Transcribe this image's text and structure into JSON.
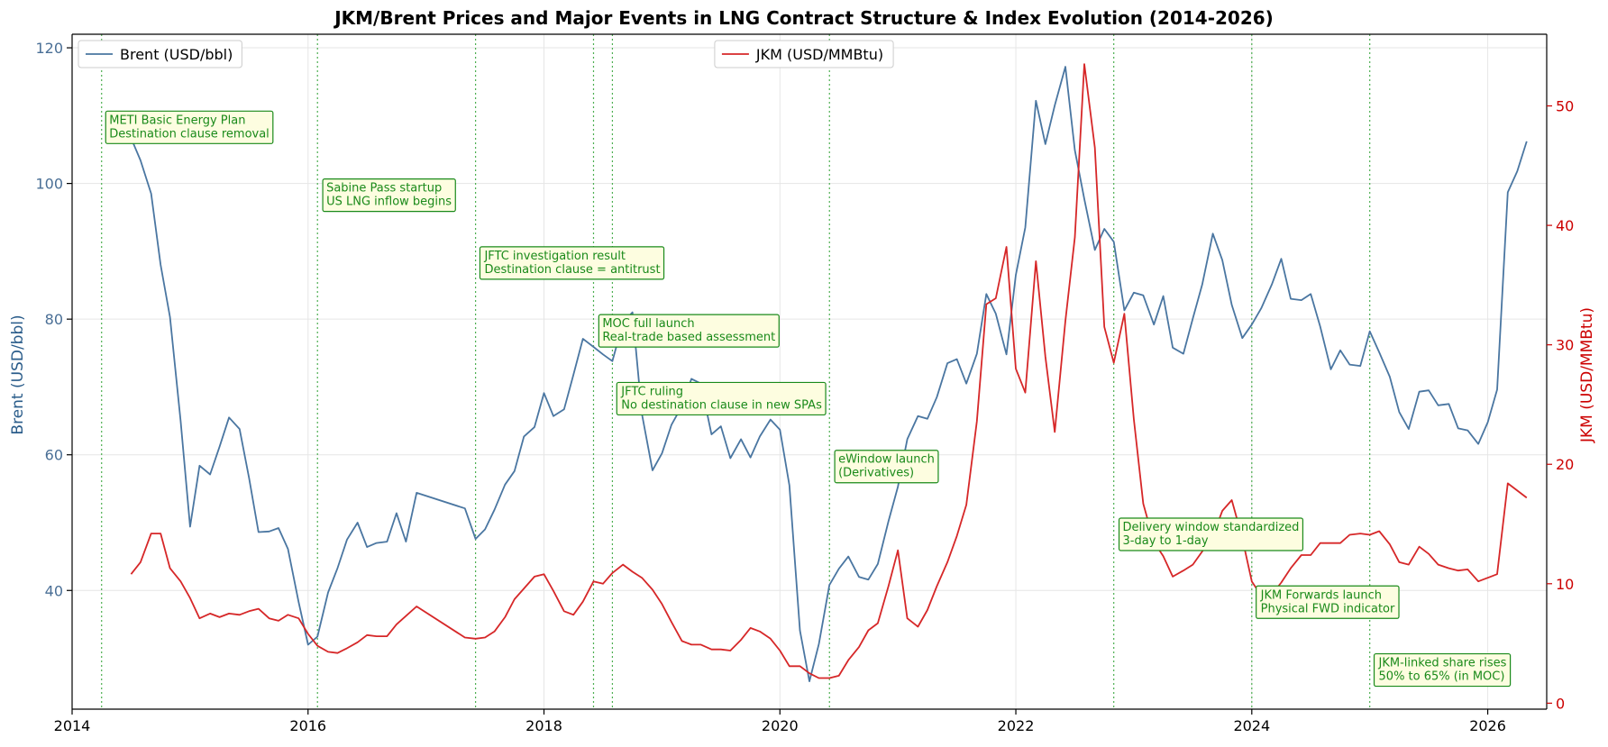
{
  "chart_data": {
    "type": "line",
    "title": "JKM/Brent Prices and Major Events in LNG Contract Structure & Index Evolution (2014-2026)",
    "xlabel": "",
    "xlim": [
      2014.0,
      2026.5
    ],
    "x_ticks": [
      2014,
      2016,
      2018,
      2020,
      2022,
      2024,
      2026
    ],
    "x_tick_labels": [
      "2014",
      "2016",
      "2018",
      "2020",
      "2022",
      "2024",
      "2026"
    ],
    "grid": true,
    "y_left": {
      "label": "Brent (USD/bbl)",
      "lim": [
        22.5,
        122
      ],
      "ticks": [
        40,
        60,
        80,
        100,
        120
      ],
      "tick_labels": [
        "40",
        "60",
        "80",
        "100",
        "120"
      ],
      "color": "#4a6f96"
    },
    "y_right": {
      "label": "JKM (USD/MMBtu)",
      "lim": [
        -0.5,
        56
      ],
      "ticks": [
        0,
        10,
        20,
        30,
        40,
        50
      ],
      "tick_labels": [
        "0",
        "10",
        "20",
        "30",
        "40",
        "50"
      ],
      "color": "#cc0000"
    },
    "series": [
      {
        "name": "Brent (USD/bbl)",
        "axis": "left",
        "color": "#4a76a1",
        "x": [
          2014.5,
          2014.58,
          2014.67,
          2014.75,
          2014.83,
          2014.92,
          2015.0,
          2015.08,
          2015.17,
          2015.25,
          2015.33,
          2015.42,
          2015.5,
          2015.58,
          2015.67,
          2015.75,
          2015.83,
          2015.92,
          2016.0,
          2016.08,
          2016.17,
          2016.25,
          2016.33,
          2016.42,
          2016.5,
          2016.58,
          2016.67,
          2016.75,
          2016.83,
          2016.92,
          2017.33,
          2017.42,
          2017.5,
          2017.58,
          2017.67,
          2017.75,
          2017.83,
          2017.92,
          2018.0,
          2018.08,
          2018.17,
          2018.25,
          2018.33,
          2018.42,
          2018.5,
          2018.58,
          2018.67,
          2018.75,
          2018.83,
          2018.92,
          2019.0,
          2019.08,
          2019.17,
          2019.25,
          2019.33,
          2019.42,
          2019.5,
          2019.58,
          2019.67,
          2019.75,
          2019.83,
          2019.92,
          2020.0,
          2020.08,
          2020.17,
          2020.25,
          2020.33,
          2020.42,
          2020.5,
          2020.58,
          2020.67,
          2020.75,
          2020.83,
          2020.92,
          2021.0,
          2021.08,
          2021.17,
          2021.25,
          2021.33,
          2021.42,
          2021.5,
          2021.58,
          2021.67,
          2021.75,
          2021.83,
          2021.92,
          2022.0,
          2022.08,
          2022.17,
          2022.25,
          2022.33,
          2022.42,
          2022.5,
          2022.58,
          2022.67,
          2022.75,
          2022.83,
          2022.92,
          2023.0,
          2023.08,
          2023.17,
          2023.25,
          2023.33,
          2023.42,
          2023.5,
          2023.58,
          2023.67,
          2023.75,
          2023.83,
          2023.92,
          2024.0,
          2024.08,
          2024.17,
          2024.25,
          2024.33,
          2024.42,
          2024.5,
          2024.58,
          2024.67,
          2024.75,
          2024.83,
          2024.92,
          2025.0,
          2025.08,
          2025.17,
          2025.25,
          2025.33,
          2025.42,
          2025.5,
          2025.58,
          2025.67,
          2025.75,
          2025.83,
          2025.92,
          2026.0,
          2026.08,
          2026.17,
          2026.25,
          2026.33
        ],
        "values": [
          106.7,
          103.4,
          98.5,
          88,
          80.3,
          65,
          49.4,
          58.4,
          57.1,
          61.2,
          65.5,
          63.8,
          56.6,
          48.6,
          48.7,
          49.2,
          46.1,
          38.3,
          32,
          33.2,
          39.7,
          43.3,
          47.5,
          50,
          46.4,
          47,
          47.2,
          51.4,
          47.2,
          54.4,
          52.1,
          47.6,
          49,
          51.9,
          55.6,
          57.6,
          62.7,
          64.1,
          69.1,
          65.7,
          66.7,
          71.8,
          77.1,
          75.9,
          74.8,
          73.8,
          79.5,
          81,
          66,
          57.7,
          60.2,
          64.4,
          67.2,
          71.2,
          70.5,
          63,
          64.2,
          59.5,
          62.3,
          59.6,
          62.7,
          65.2,
          63.7,
          55.5,
          34.1,
          26.6,
          32.1,
          40.8,
          43.2,
          45,
          42,
          41.6,
          43.9,
          50.2,
          55.3,
          62.3,
          65.7,
          65.3,
          68.5,
          73.5,
          74.1,
          70.5,
          74.9,
          83.7,
          80.8,
          74.8,
          86.5,
          93.5,
          112.2,
          105.8,
          111.5,
          117.2,
          104.9,
          97.7,
          90.2,
          93.3,
          91.4,
          81.3,
          83.9,
          83.5,
          79.2,
          83.4,
          75.8,
          74.9,
          80.1,
          85.1,
          92.6,
          88.7,
          82.1,
          77.2,
          79.2,
          81.6,
          85.1,
          88.9,
          83,
          82.8,
          83.7,
          78.9,
          72.6,
          75.4,
          73.3,
          73.1,
          78.2,
          75.1,
          71.5,
          66.3,
          63.8,
          69.3,
          69.5,
          67.3,
          67.5,
          63.9,
          63.6,
          61.6,
          64.8,
          69.6,
          98.7,
          101.8,
          106.2
        ]
      },
      {
        "name": "JKM (USD/MMBtu)",
        "axis": "right",
        "color": "#d62728",
        "x": [
          2014.5,
          2014.58,
          2014.67,
          2014.75,
          2014.83,
          2014.92,
          2015.0,
          2015.08,
          2015.17,
          2015.25,
          2015.33,
          2015.42,
          2015.5,
          2015.58,
          2015.67,
          2015.75,
          2015.83,
          2015.92,
          2016.0,
          2016.08,
          2016.17,
          2016.25,
          2016.33,
          2016.42,
          2016.5,
          2016.58,
          2016.67,
          2016.75,
          2016.83,
          2016.92,
          2017.33,
          2017.42,
          2017.5,
          2017.58,
          2017.67,
          2017.75,
          2017.83,
          2017.92,
          2018.0,
          2018.08,
          2018.17,
          2018.25,
          2018.33,
          2018.42,
          2018.5,
          2018.58,
          2018.67,
          2018.75,
          2018.83,
          2018.92,
          2019.0,
          2019.08,
          2019.17,
          2019.25,
          2019.33,
          2019.42,
          2019.5,
          2019.58,
          2019.67,
          2019.75,
          2019.83,
          2019.92,
          2020.0,
          2020.08,
          2020.17,
          2020.25,
          2020.33,
          2020.42,
          2020.5,
          2020.58,
          2020.67,
          2020.75,
          2020.83,
          2020.92,
          2021.0,
          2021.08,
          2021.17,
          2021.25,
          2021.33,
          2021.42,
          2021.5,
          2021.58,
          2021.67,
          2021.75,
          2021.83,
          2021.92,
          2022.0,
          2022.08,
          2022.17,
          2022.25,
          2022.33,
          2022.42,
          2022.5,
          2022.58,
          2022.67,
          2022.75,
          2022.83,
          2022.92,
          2023.0,
          2023.08,
          2023.17,
          2023.25,
          2023.33,
          2023.42,
          2023.5,
          2023.58,
          2023.67,
          2023.75,
          2023.83,
          2023.92,
          2024.0,
          2024.08,
          2024.17,
          2024.25,
          2024.33,
          2024.42,
          2024.5,
          2024.58,
          2024.67,
          2024.75,
          2024.83,
          2024.92,
          2025.0,
          2025.08,
          2025.17,
          2025.25,
          2025.33,
          2025.42,
          2025.5,
          2025.58,
          2025.67,
          2025.75,
          2025.83,
          2025.92,
          2026.0,
          2026.08,
          2026.17,
          2026.25,
          2026.33
        ],
        "values": [
          10.8,
          11.8,
          14.2,
          14.2,
          11.3,
          10.2,
          8.8,
          7.1,
          7.5,
          7.2,
          7.5,
          7.4,
          7.7,
          7.9,
          7.1,
          6.9,
          7.4,
          7.1,
          5.8,
          4.8,
          4.3,
          4.2,
          4.6,
          5.1,
          5.7,
          5.6,
          5.6,
          6.6,
          7.3,
          8.1,
          5.5,
          5.4,
          5.5,
          6,
          7.2,
          8.7,
          9.6,
          10.6,
          10.8,
          9.4,
          7.7,
          7.4,
          8.5,
          10.2,
          10,
          10.9,
          11.6,
          11,
          10.5,
          9.5,
          8.3,
          6.8,
          5.2,
          4.9,
          4.9,
          4.5,
          4.5,
          4.4,
          5.3,
          6.3,
          6,
          5.4,
          4.4,
          3.1,
          3.1,
          2.5,
          2.1,
          2.1,
          2.3,
          3.6,
          4.7,
          6.1,
          6.7,
          9.8,
          12.8,
          7.1,
          6.4,
          7.8,
          9.8,
          11.8,
          14,
          16.6,
          23.6,
          33.4,
          33.9,
          38.2,
          28,
          26,
          37,
          29,
          22.7,
          32,
          39,
          53.5,
          46.5,
          31.5,
          28.5,
          32.6,
          23.8,
          16.7,
          13.5,
          12.3,
          10.6,
          11.1,
          11.6,
          12.7,
          14,
          16.1,
          17,
          13.8,
          10.2,
          9,
          9.1,
          10.1,
          11.3,
          12.4,
          12.4,
          13.4,
          13.4,
          13.4,
          14.1,
          14.2,
          14.1,
          14.4,
          13.3,
          11.8,
          11.6,
          13.1,
          12.5,
          11.6,
          11.3,
          11.1,
          11.2,
          10.2,
          10.5,
          10.8,
          18.4,
          17.8,
          17.2
        ]
      }
    ],
    "events": [
      {
        "x": 2014.25,
        "text": "METI Basic Energy Plan\nDestination clause removal",
        "label_x": 2014.3,
        "label_y": 110.0
      },
      {
        "x": 2016.08,
        "text": "Sabine Pass startup\nUS LNG inflow begins",
        "label_x": 2016.14,
        "label_y": 100.0
      },
      {
        "x": 2017.42,
        "text": "JFTC investigation result\nDestination clause = antitrust",
        "label_x": 2017.48,
        "label_y": 90.0
      },
      {
        "x": 2018.42,
        "text": "MOC full launch\nReal-trade based assessment",
        "label_x": 2018.48,
        "label_y": 80.0
      },
      {
        "x": 2018.58,
        "text": "JFTC ruling\nNo destination clause in new SPAs",
        "label_x": 2018.64,
        "label_y": 70.0
      },
      {
        "x": 2020.42,
        "text": "eWindow launch\n(Derivatives)",
        "label_x": 2020.48,
        "label_y": 60.0
      },
      {
        "x": 2022.83,
        "text": "Delivery window standardized\n3-day to 1-day",
        "label_x": 2022.89,
        "label_y": 50.0
      },
      {
        "x": 2024.0,
        "text": "JKM Forwards launch\nPhysical FWD indicator",
        "label_x": 2024.06,
        "label_y": 40.0
      },
      {
        "x": 2025.0,
        "text": "JKM-linked share rises\n50% to 65% (in MOC)",
        "label_x": 2025.06,
        "label_y": 30.0
      }
    ],
    "legend": [
      {
        "label": "Brent (USD/bbl)",
        "placement": "upper-left",
        "color": "#4a76a1"
      },
      {
        "label": "JKM (USD/MMBtu)",
        "placement": "upper-center",
        "color": "#d62728"
      }
    ],
    "colors": {
      "event_line": "#4caf50",
      "annotation_text": "#1a8a1a",
      "annotation_fill": "#fdfde0",
      "annotation_border": "#1a8a1a",
      "grid": "#e6e6e6"
    }
  }
}
